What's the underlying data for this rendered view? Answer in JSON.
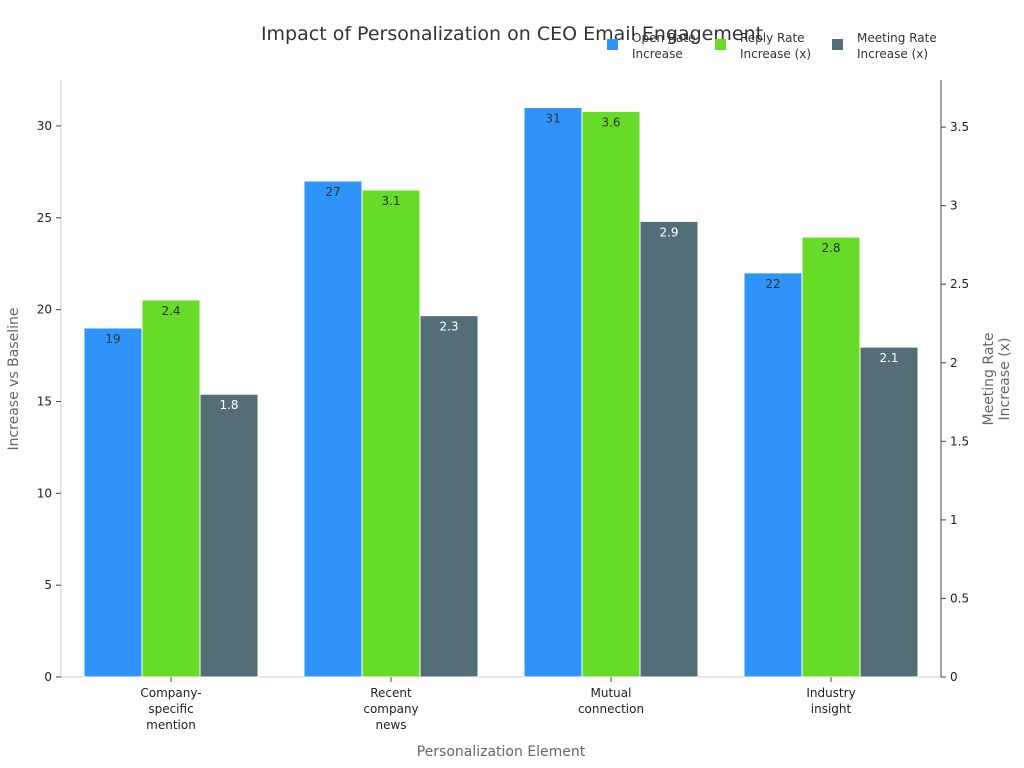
{
  "chart_data": {
    "type": "bar",
    "title": "Impact of Personalization on CEO Email Engagement",
    "xlabel": "Personalization Element",
    "ylabel": "Increase vs Baseline",
    "y2label_lines": [
      "Meeting Rate",
      "Increase (x)"
    ],
    "categories": [
      [
        "Company-",
        "specific",
        "mention"
      ],
      [
        "Recent",
        "company",
        "news"
      ],
      [
        "Mutual",
        "connection"
      ],
      [
        "Industry",
        "insight"
      ]
    ],
    "series": [
      {
        "name_lines": [
          "Open Rate",
          "Increase"
        ],
        "axis": "left",
        "color": "#3093fa",
        "label_color": "#333333",
        "values": [
          19,
          27,
          31,
          22
        ]
      },
      {
        "name_lines": [
          "Reply Rate",
          "Increase (x)"
        ],
        "axis": "right",
        "color": "#66db28",
        "label_color": "#333333",
        "values": [
          2.4,
          3.1,
          3.6,
          2.8
        ]
      },
      {
        "name_lines": [
          "Meeting Rate",
          "Increase (x)"
        ],
        "axis": "right",
        "color": "#546e78",
        "label_color": "#ffffff",
        "values": [
          1.8,
          2.3,
          2.9,
          2.1
        ]
      }
    ],
    "ylim": [
      0,
      32.5
    ],
    "y2lim": [
      0,
      3.8
    ],
    "yticks": [
      0,
      5,
      10,
      15,
      20,
      25,
      30
    ],
    "y2ticks": [
      0,
      0.5,
      1,
      1.5,
      2,
      2.5,
      3,
      3.5
    ],
    "legend_position": "top-right",
    "grid": false
  }
}
